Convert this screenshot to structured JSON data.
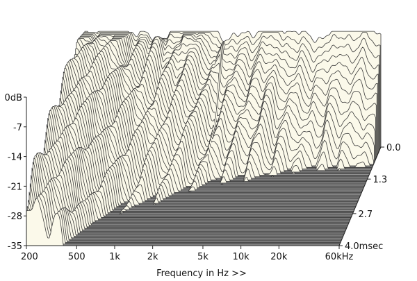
{
  "chart_data": {
    "type": "waterfall",
    "title": "",
    "xlabel": "Frequency in Hz >>",
    "x_scale": "log",
    "x_ticks": [
      "200",
      "500",
      "1k",
      "2k",
      "5k",
      "10k",
      "20k",
      "60kHz"
    ],
    "x_tick_values": [
      200,
      500,
      1000,
      2000,
      5000,
      10000,
      20000,
      60000
    ],
    "xlim": [
      200,
      60000
    ],
    "y_ticks": [
      "0dB",
      "-7",
      "-14",
      "-21",
      "-28",
      "-35"
    ],
    "y_tick_values": [
      0,
      -7,
      -14,
      -21,
      -28,
      -35
    ],
    "ylim": [
      -35,
      0
    ],
    "time_ticks": [
      "0.0",
      "1.3",
      "2.7",
      "4.0msec"
    ],
    "time_tick_values": [
      0.0,
      1.3,
      2.7,
      4.0
    ],
    "time_range_ms": [
      0,
      4.0
    ],
    "grid": false,
    "colors": {
      "surface_fill": "#fbf9ea",
      "surface_line": "#3a3a3a",
      "floor_fill": "#8f8f8f",
      "floor_line": "#5a5a5a"
    }
  }
}
